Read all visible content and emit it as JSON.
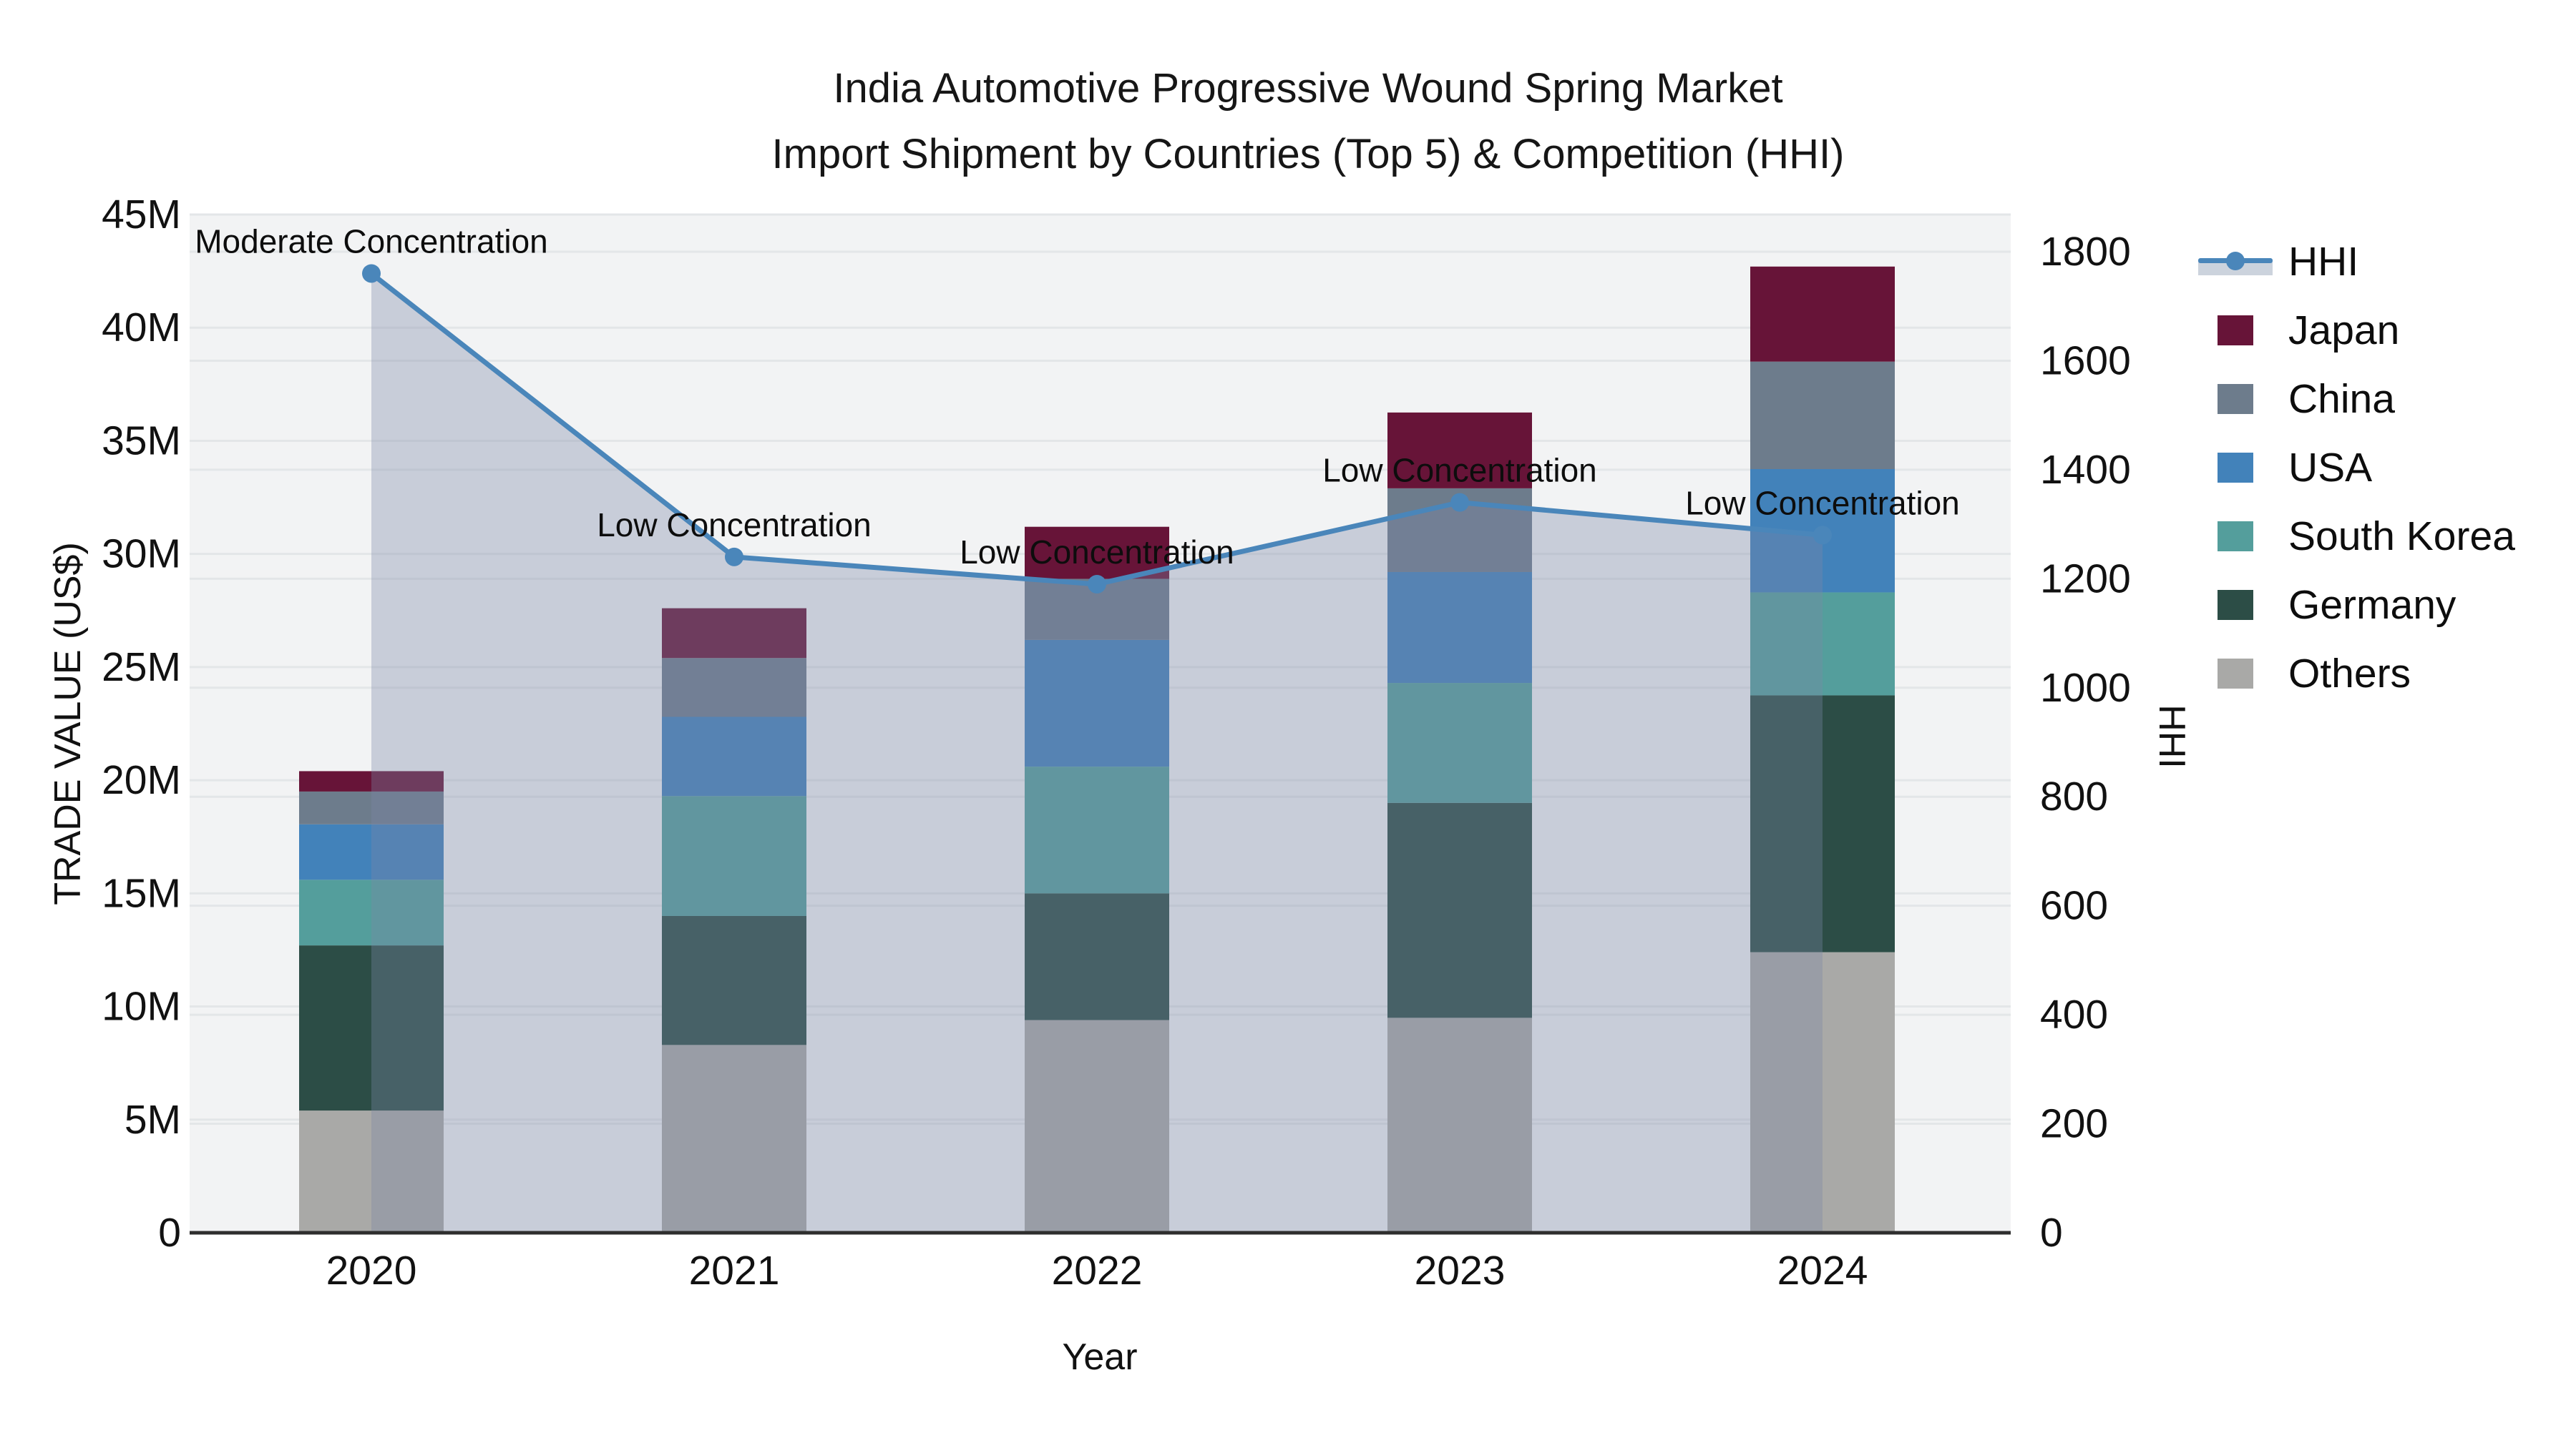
{
  "title": {
    "line1": "India Automotive Progressive Wound Spring Market",
    "line2": "Import Shipment by Countries (Top 5) & Competition (HHI)"
  },
  "chart_data": {
    "type": "bar",
    "subtype": "stacked-bars-with-line-overlay-dual-axis",
    "unit": "US$ millions",
    "categories": [
      "2020",
      "2021",
      "2022",
      "2023",
      "2024"
    ],
    "stack_order_bottom_to_top": [
      "Others",
      "Germany",
      "South Korea",
      "USA",
      "China",
      "Japan"
    ],
    "series": [
      {
        "name": "Japan",
        "color": "#671438",
        "values": [
          0.9,
          2.2,
          2.3,
          3.35,
          4.2
        ]
      },
      {
        "name": "China",
        "color": "#6d7c8c",
        "values": [
          1.45,
          2.6,
          2.7,
          3.7,
          4.75
        ]
      },
      {
        "name": "USA",
        "color": "#4282ba",
        "values": [
          2.45,
          3.5,
          5.6,
          4.9,
          5.45
        ]
      },
      {
        "name": "South Korea",
        "color": "#549e9c",
        "values": [
          2.9,
          5.3,
          5.6,
          5.3,
          4.55
        ]
      },
      {
        "name": "Germany",
        "color": "#2c4d46",
        "values": [
          7.3,
          5.7,
          5.6,
          9.5,
          11.35
        ]
      },
      {
        "name": "Others",
        "color": "#a9a9a7",
        "values": [
          5.4,
          8.3,
          9.4,
          9.5,
          12.4
        ]
      }
    ],
    "bar_totals": [
      20.4,
      27.6,
      31.2,
      36.25,
      42.7
    ],
    "line_series": {
      "name": "HHI",
      "values": [
        1760,
        1240,
        1190,
        1340,
        1280
      ],
      "color": "#4a86ba",
      "area_fill": "rgba(122,136,166,0.35)"
    },
    "annotations": [
      {
        "category": "2020",
        "text": "Moderate Concentration"
      },
      {
        "category": "2021",
        "text": "Low Concentration"
      },
      {
        "category": "2022",
        "text": "Low Concentration"
      },
      {
        "category": "2023",
        "text": "Low Concentration"
      },
      {
        "category": "2024",
        "text": "Low Concentration"
      }
    ],
    "xlabel": "Year",
    "ylabel_left": "TRADE VALUE (US$)",
    "ylabel_right": "HHI",
    "y_left_ticks": [
      "0",
      "5M",
      "10M",
      "15M",
      "20M",
      "25M",
      "30M",
      "35M",
      "40M",
      "45M"
    ],
    "y_left_tick_values": [
      0,
      5,
      10,
      15,
      20,
      25,
      30,
      35,
      40,
      45
    ],
    "y_left_max": 45,
    "y_right_ticks": [
      "0",
      "200",
      "400",
      "600",
      "800",
      "1000",
      "1200",
      "1400",
      "1600",
      "1800"
    ],
    "y_right_tick_values": [
      0,
      200,
      400,
      600,
      800,
      1000,
      1200,
      1400,
      1600,
      1800
    ],
    "y_right_max_tick": 1800,
    "grid": "on",
    "legend_position": "right",
    "legend_order": [
      "HHI",
      "Japan",
      "China",
      "USA",
      "South Korea",
      "Germany",
      "Others"
    ],
    "colors": {
      "plot_bg": "#f2f3f4",
      "grid": "#e3e6e8",
      "axis_line": "#2e2e2e",
      "text": "#111111"
    }
  }
}
